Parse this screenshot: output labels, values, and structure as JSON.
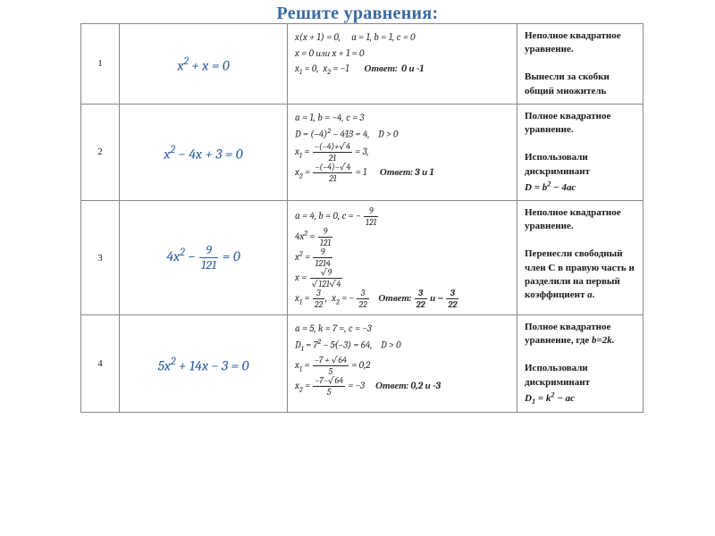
{
  "title": "Решите уравнения:",
  "colors": {
    "title": "#3b6aa0",
    "equation": "#2a5aa0",
    "border": "#888888",
    "text": "#1a1a1a",
    "background": "#ffffff"
  },
  "rows": [
    {
      "n": "1",
      "equation_html": "x<sup>2</sup> + x = 0",
      "solution_html": "x(x + 1) = 0,&nbsp;&nbsp;&nbsp;&nbsp; a = 1, b = 1, c = 0<br>x = 0 или x + 1 = 0<br>x<sub>1</sub> = 0,&nbsp; x<sub>2</sub> = −1&nbsp;&nbsp;&nbsp;&nbsp;&nbsp;&nbsp; <span class='ans'>Ответ:&nbsp; 0 и -1</span>",
      "note_html": "Неполное квадратное уравнение.<br><br>Вынесли за скобки общий множитель"
    },
    {
      "n": "2",
      "equation_html": "x<sup>2</sup> − 4x + 3 = 0",
      "solution_html": "a = 1, b = −4, c = 3<br>D = (−4)<sup>2</sup> − 4·1·3 = 4,&nbsp;&nbsp;&nbsp; D &gt; 0<br>x<sub>1</sub> = <span class='frac'><span class='fn'>−(−4)+√4</span><span class='fd'>2·1</span></span> = 3,<br>x<sub>2</sub> = <span class='frac'><span class='fn'>−(−4)−√4</span><span class='fd'>2·1</span></span> = 1&nbsp;&nbsp;&nbsp;&nbsp;&nbsp; <span class='ans'>Ответ: 3 и 1</span>",
      "note_html": "Полное квадратное уравнение.<br><br>Использовали дискриминант<br><span style='font-family:Cambria Math,serif;font-style:italic;'>D = b<sup>2</sup> − 4ac</span>"
    },
    {
      "n": "3",
      "equation_html": "4x<sup>2</sup> − <span class='frac'><span class='fn'>9</span><span class='fd'>121</span></span> = 0",
      "solution_html": "a = 4, b = 0, c = − <span class='frac'><span class='fn'>9</span><span class='fd'>121</span></span><br>4x<sup>2</sup> = <span class='frac'><span class='fn'>9</span><span class='fd'>121</span></span><br>x<sup>2</sup> = <span class='frac'><span class='fn'>9</span><span class='fd'>121·4</span></span><br>x = <span class='frac'><span class='fn'>√9</span><span class='fd'>√121·√4</span></span><br>x<sub>1</sub> = <span class='frac'><span class='fn'>3</span><span class='fd'>22</span></span>,&nbsp; x<sub>2</sub> = − <span class='frac'><span class='fn'>3</span><span class='fd'>22</span></span>&nbsp;&nbsp;&nbsp; <span class='ans'>Ответ: <span class='frac'><span class='fn'>3</span><span class='fd'>22</span></span> и − <span class='frac'><span class='fn'>3</span><span class='fd'>22</span></span></span>",
      "note_html": "Неполное квадратное уравнение.<br><br>Перенесли свободный член <span class='nb'>C</span> в правую часть и разделили на первый коэффициент <span style='font-style:italic;'>a</span>."
    },
    {
      "n": "4",
      "equation_html": "5x<sup>2</sup> + 14x − 3 = 0",
      "solution_html": "a = 5, k = 7 =, c = −3<br>D<sub>1</sub> = 7<sup>2</sup> − 5·(−3) = 64,&nbsp;&nbsp;&nbsp; D &gt; 0<br>x<sub>1</sub> = <span class='frac'><span class='fn'>−7 + √64</span><span class='fd'>5</span></span> = 0,2<br>x<sub>2</sub> = <span class='frac'><span class='fn'>−7−√64</span><span class='fd'>5</span></span> = −3&nbsp;&nbsp;&nbsp;&nbsp; <span class='ans'>Ответ: 0,2 и -3</span>",
      "note_html": "Полное квадратное уравнение, где <span style='font-style:italic;'>b=2k.</span><br><br>Использовали дискриминант<br><span style='font-family:Cambria Math,serif;font-style:italic;'>D<sub>1</sub> = k<sup>2</sup> − ac</span>"
    }
  ]
}
